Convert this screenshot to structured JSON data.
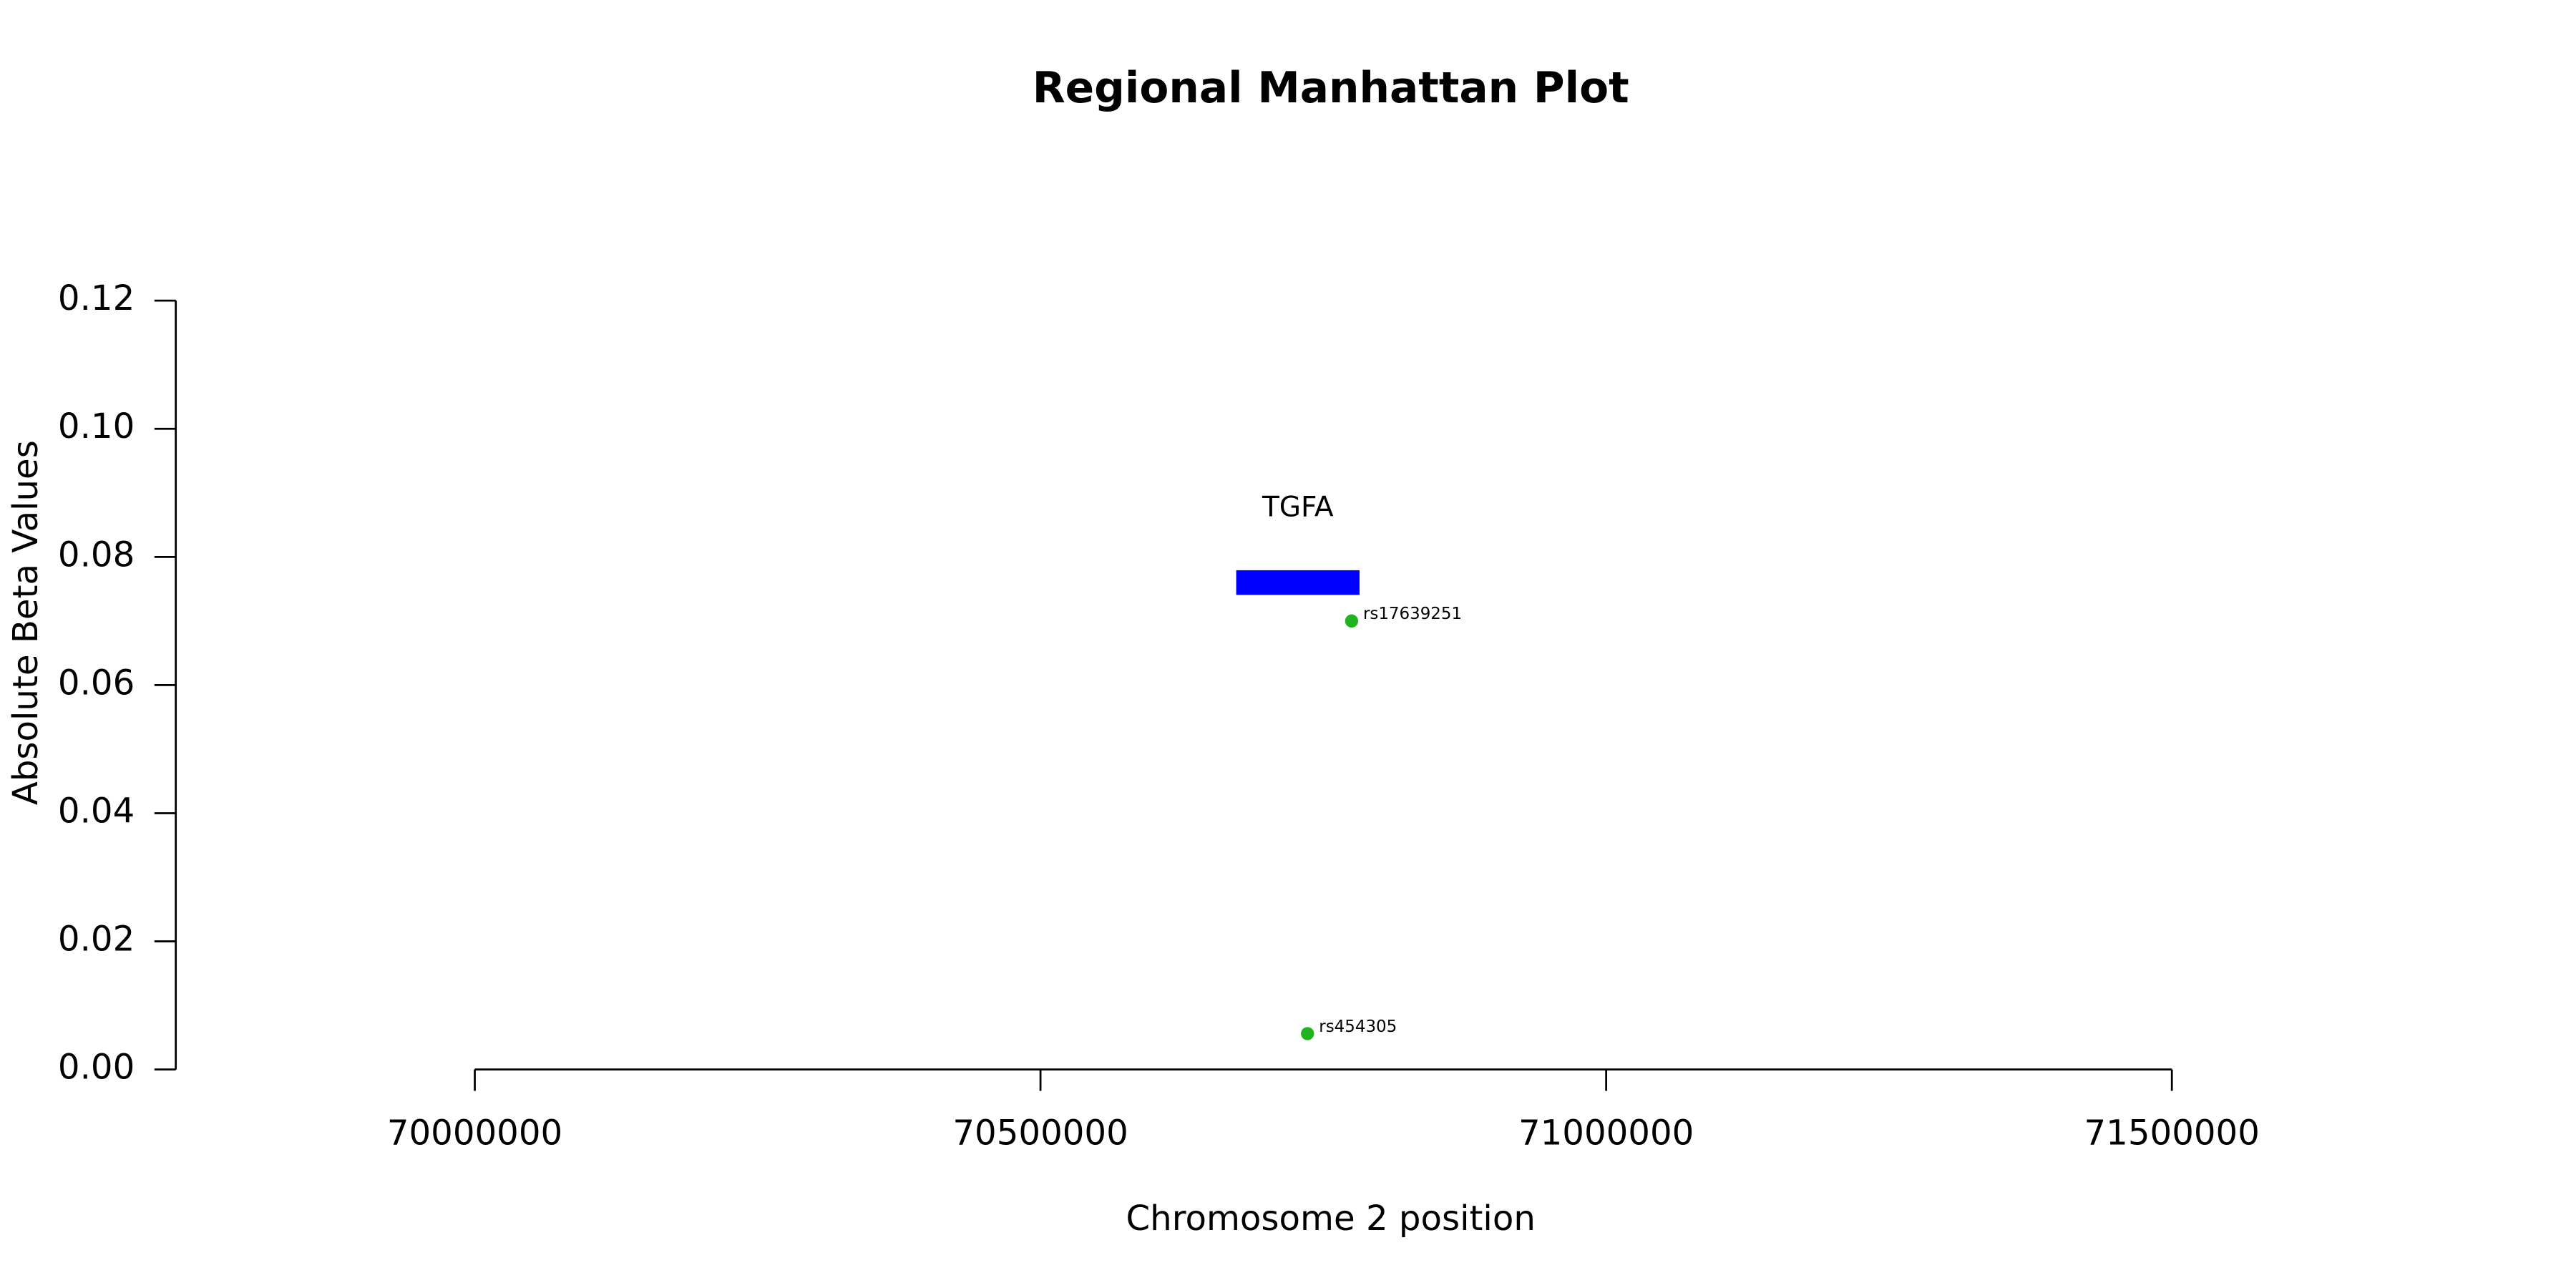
{
  "chart_data": {
    "type": "scatter",
    "title": "Regional Manhattan Plot",
    "x_label": "Chromosome 2 position",
    "y_label": "Absolute Beta Values",
    "xlim": [
      70000000,
      71500000
    ],
    "xticks": [
      70000000,
      70500000,
      71000000,
      71500000
    ],
    "ylim": [
      0,
      0.12
    ],
    "yticks": [
      {
        "value": 0,
        "label": "0.00"
      },
      {
        "value": 0.02,
        "label": "0.02"
      },
      {
        "value": 0.04,
        "label": "0.04"
      },
      {
        "value": 0.06,
        "label": "0.06"
      },
      {
        "value": 0.08,
        "label": "0.08"
      },
      {
        "value": 0.1,
        "label": "0.10"
      },
      {
        "value": 0.12,
        "label": "0.12"
      }
    ],
    "points": {
      "color": "#1fb41f",
      "labels": [
        "rs17639251",
        "rs454305"
      ],
      "x": [
        70775000,
        70736000
      ],
      "values": [
        0.07,
        0.0056
      ]
    },
    "gene": {
      "label": "TGFA",
      "color": "#0000ff",
      "start": 70673000,
      "end": 70782000,
      "y": 0.076
    }
  }
}
